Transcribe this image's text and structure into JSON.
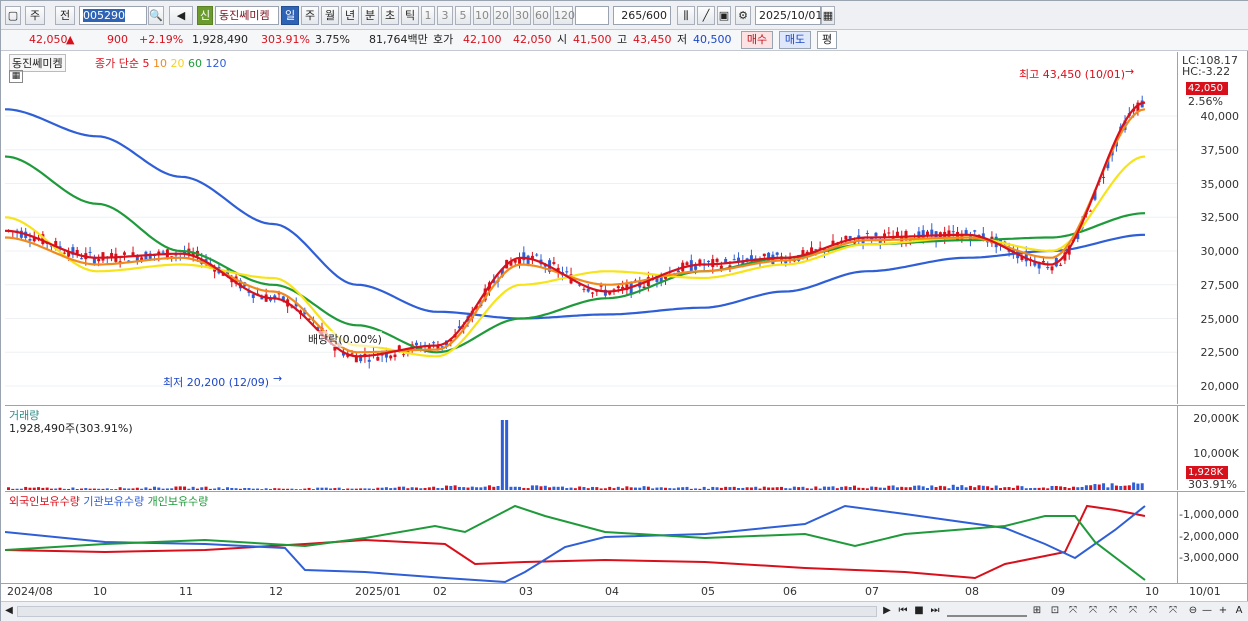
{
  "toolbar": {
    "type": "주",
    "prev": "전",
    "code": "005290",
    "name_tag": "신",
    "name": "동진쎄미켐",
    "periods": [
      "일",
      "주",
      "월",
      "년",
      "분",
      "초",
      "틱"
    ],
    "active_period": "일",
    "intervals": [
      "1",
      "3",
      "5",
      "10",
      "20",
      "30",
      "60",
      "120"
    ],
    "count": "265",
    "count_total": "/600",
    "date": "2025/10/01"
  },
  "quote": {
    "price": "42,050",
    "arrow": "▲",
    "change": "900",
    "change_pct": "+2.19%",
    "volume": "1,928,490",
    "vol_ratio": "303.91%",
    "turnover": "3.75%",
    "amount": "81,764백만",
    "hoga_label": "호가",
    "ask": "42,100",
    "bid": "42,050",
    "open_label": "시",
    "open": "41,500",
    "high_label": "고",
    "high": "43,450",
    "low_label": "저",
    "low": "40,500",
    "buy": "매수",
    "sell": "매도",
    "eval": "평"
  },
  "price_panel": {
    "title": "동진쎄미켐",
    "legend_prefix": "종가 단순",
    "ma": [
      {
        "label": "5",
        "color": "#d8101c"
      },
      {
        "label": "10",
        "color": "#f08a1e"
      },
      {
        "label": "20",
        "color": "#f7e31a"
      },
      {
        "label": "60",
        "color": "#1f9a3a"
      },
      {
        "label": "120",
        "color": "#2f5fd6"
      }
    ],
    "high_note": "최고 43,450 (10/01)",
    "low_note": "최저 20,200 (12/09)",
    "dividend_note": "배당락(0.00%)",
    "lc": "LC:108.17",
    "hc": "HC:-3.22",
    "last_badge": "42,050",
    "last_pct": "2.56%",
    "y_ticks": [
      "40,000",
      "37,500",
      "35,000",
      "32,500",
      "30,000",
      "27,500",
      "25,000",
      "22,500",
      "20,000"
    ]
  },
  "volume_panel": {
    "title": "거래량",
    "value": "1,928,490주(303.91%)",
    "y_ticks": [
      "20,000K",
      "10,000K"
    ],
    "last_badge": "1,928K",
    "last_pct": "303.91%"
  },
  "holdings_panel": {
    "legend": [
      {
        "label": "외국인보유수량",
        "color": "#d8101c"
      },
      {
        "label": "기관보유수량",
        "color": "#2f5fd6"
      },
      {
        "label": "개인보유수량",
        "color": "#1f9a3a"
      }
    ],
    "y_ticks": [
      "-1,000,000",
      "-2,000,000",
      "-3,000,000"
    ]
  },
  "x_axis": {
    "labels": [
      "2024/08",
      "10",
      "11",
      "12",
      "2025/01",
      "02",
      "03",
      "04",
      "05",
      "06",
      "07",
      "08",
      "09",
      "10",
      "10/01"
    ]
  },
  "chart_data": {
    "type": "candlestick",
    "title": "동진쎄미켐",
    "ylim": [
      19000,
      44000
    ],
    "high": {
      "value": 43450,
      "date": "10/01"
    },
    "low": {
      "value": 20200,
      "date": "12/09"
    },
    "ma_anchor_dates": [
      "2024/08",
      "10",
      "11",
      "12",
      "2025/01",
      "02",
      "03",
      "04",
      "05",
      "06",
      "07",
      "08",
      "09",
      "10"
    ],
    "ma5": [
      31500,
      29500,
      29800,
      26500,
      22200,
      23000,
      29500,
      27000,
      29000,
      29500,
      31000,
      31200,
      29000,
      41000
    ],
    "ma10": [
      31000,
      29000,
      29500,
      27000,
      22500,
      22700,
      29000,
      27500,
      28500,
      29300,
      30800,
      31000,
      29500,
      40500
    ],
    "ma20": [
      32500,
      28500,
      29000,
      28000,
      23000,
      22200,
      27500,
      28500,
      28000,
      29000,
      30500,
      31000,
      30000,
      37000
    ],
    "ma60": [
      37000,
      33500,
      30000,
      27500,
      24500,
      22500,
      25000,
      26500,
      28500,
      29500,
      30500,
      30800,
      31000,
      32800
    ],
    "ma120": [
      40500,
      38500,
      35500,
      32000,
      27500,
      25500,
      25000,
      25300,
      25800,
      27000,
      28500,
      29500,
      30000,
      31200
    ],
    "volume_k": [
      600,
      500,
      700,
      400,
      500,
      900,
      20000,
      800,
      600,
      700,
      900,
      1000,
      800,
      1928
    ]
  }
}
